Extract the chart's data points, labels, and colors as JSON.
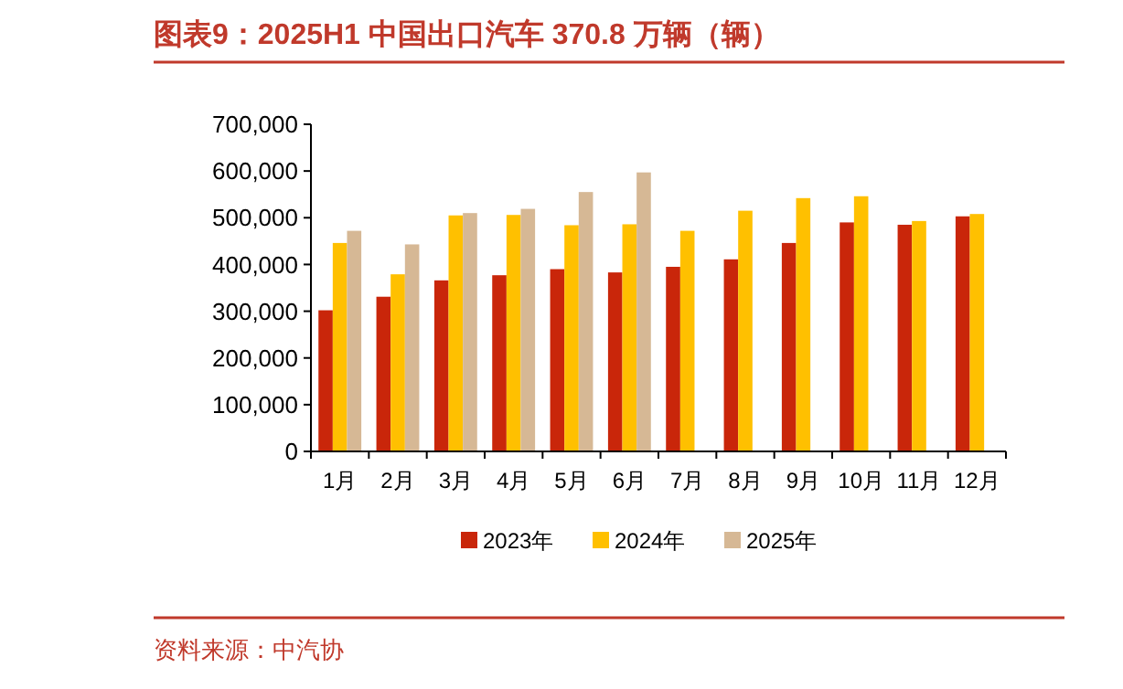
{
  "chart_data": {
    "type": "bar",
    "title": "图表9：2025H1 中国出口汽车 370.8 万辆（辆）",
    "categories": [
      "1月",
      "2月",
      "3月",
      "4月",
      "5月",
      "6月",
      "7月",
      "8月",
      "9月",
      "10月",
      "11月",
      "12月"
    ],
    "series": [
      {
        "name": "2023年",
        "color": "#c9260a",
        "values": [
          302000,
          331000,
          366000,
          377000,
          390000,
          383000,
          395000,
          411000,
          446000,
          490000,
          485000,
          503000
        ]
      },
      {
        "name": "2024年",
        "color": "#ffc000",
        "values": [
          446000,
          379000,
          505000,
          506000,
          484000,
          486000,
          472000,
          515000,
          542000,
          546000,
          493000,
          508000
        ]
      },
      {
        "name": "2025年",
        "color": "#d6b895",
        "values": [
          472000,
          443000,
          510000,
          519000,
          555000,
          597000,
          null,
          null,
          null,
          null,
          null,
          null
        ]
      }
    ],
    "ylim": [
      0,
      700000
    ],
    "yticks": [
      {
        "value": 0,
        "label": "0"
      },
      {
        "value": 100000,
        "label": "100,000"
      },
      {
        "value": 200000,
        "label": "200,000"
      },
      {
        "value": 300000,
        "label": "300,000"
      },
      {
        "value": 400000,
        "label": "400,000"
      },
      {
        "value": 500000,
        "label": "500,000"
      },
      {
        "value": 600000,
        "label": "600,000"
      },
      {
        "value": 700000,
        "label": "700,000"
      }
    ],
    "grid": false,
    "legend": "bottom",
    "annotations": [
      "资料来源：中汽协"
    ]
  }
}
